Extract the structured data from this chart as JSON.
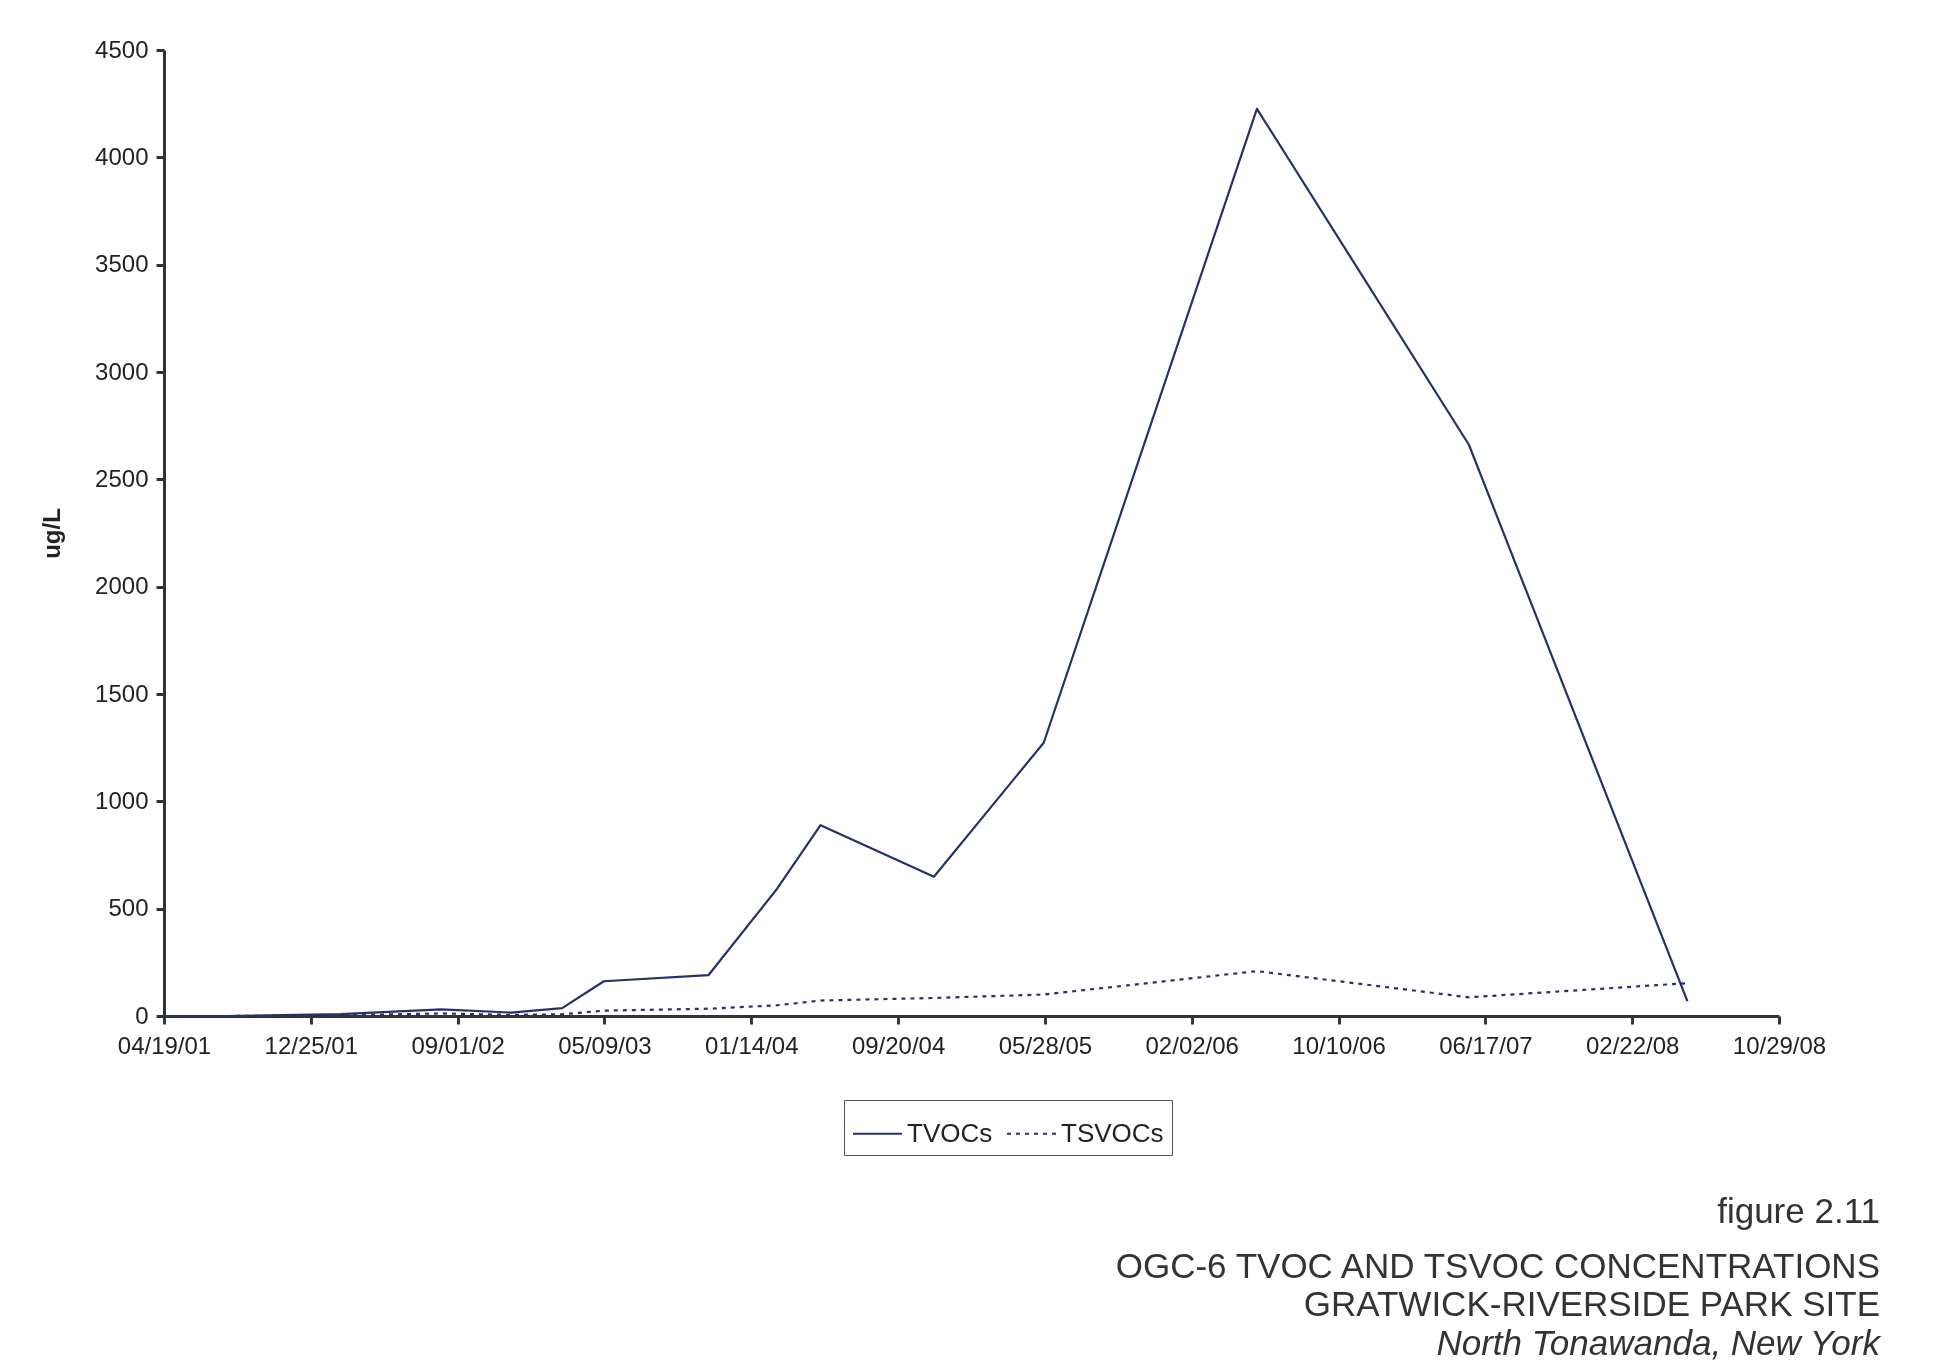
{
  "chart_data": {
    "type": "line",
    "title": "OGC-6 TVOC AND TSVOC CONCENTRATIONS",
    "subtitle": "GRATWICK-RIVERSIDE PARK SITE",
    "ylabel": "ug/L",
    "annotations": [
      "figure 2.11",
      "North Tonawanda, New York"
    ],
    "x": [
      "2001-04-19",
      "2001-08-05",
      "2002-02-14",
      "2002-08-04",
      "2002-12-01",
      "2003-02-26",
      "2003-05-08",
      "2003-11-02",
      "2004-02-27",
      "2004-05-11",
      "2004-11-20",
      "2005-05-26",
      "2006-05-24",
      "2007-05-20",
      "2008-05-26"
    ],
    "series": [
      {
        "name": "TVOCs",
        "color": "#26306b",
        "line_style": "solid",
        "values": [
          0,
          0,
          9,
          31,
          16,
          37,
          162,
          190,
          593,
          889,
          649,
          1273,
          4226,
          2661,
          69
        ]
      },
      {
        "name": "TSVOCs",
        "color": "#26306b",
        "line_style": "dotted",
        "values": [
          0,
          0,
          3,
          12,
          5,
          8,
          25,
          34,
          50,
          72,
          84,
          100,
          209,
          87,
          153
        ]
      }
    ],
    "xlim": [
      "2001-04-19",
      "2008-10-29"
    ],
    "xticks": [
      {
        "value": "2001-04-19",
        "label": "04/19/01"
      },
      {
        "value": "2001-12-25",
        "label": "12/25/01"
      },
      {
        "value": "2002-09-01",
        "label": "09/01/02"
      },
      {
        "value": "2003-05-09",
        "label": "05/09/03"
      },
      {
        "value": "2004-01-14",
        "label": "01/14/04"
      },
      {
        "value": "2004-09-20",
        "label": "09/20/04"
      },
      {
        "value": "2005-05-28",
        "label": "05/28/05"
      },
      {
        "value": "2006-02-02",
        "label": "02/02/06"
      },
      {
        "value": "2006-10-10",
        "label": "10/10/06"
      },
      {
        "value": "2007-06-17",
        "label": "06/17/07"
      },
      {
        "value": "2008-02-22",
        "label": "02/22/08"
      },
      {
        "value": "2008-10-29",
        "label": "10/29/08"
      }
    ],
    "ylim": [
      0,
      4500
    ],
    "yticks": [
      0,
      500,
      1000,
      1500,
      2000,
      2500,
      3000,
      3500,
      4000,
      4500
    ],
    "grid": false,
    "legend": "bottom",
    "marker": "none"
  }
}
